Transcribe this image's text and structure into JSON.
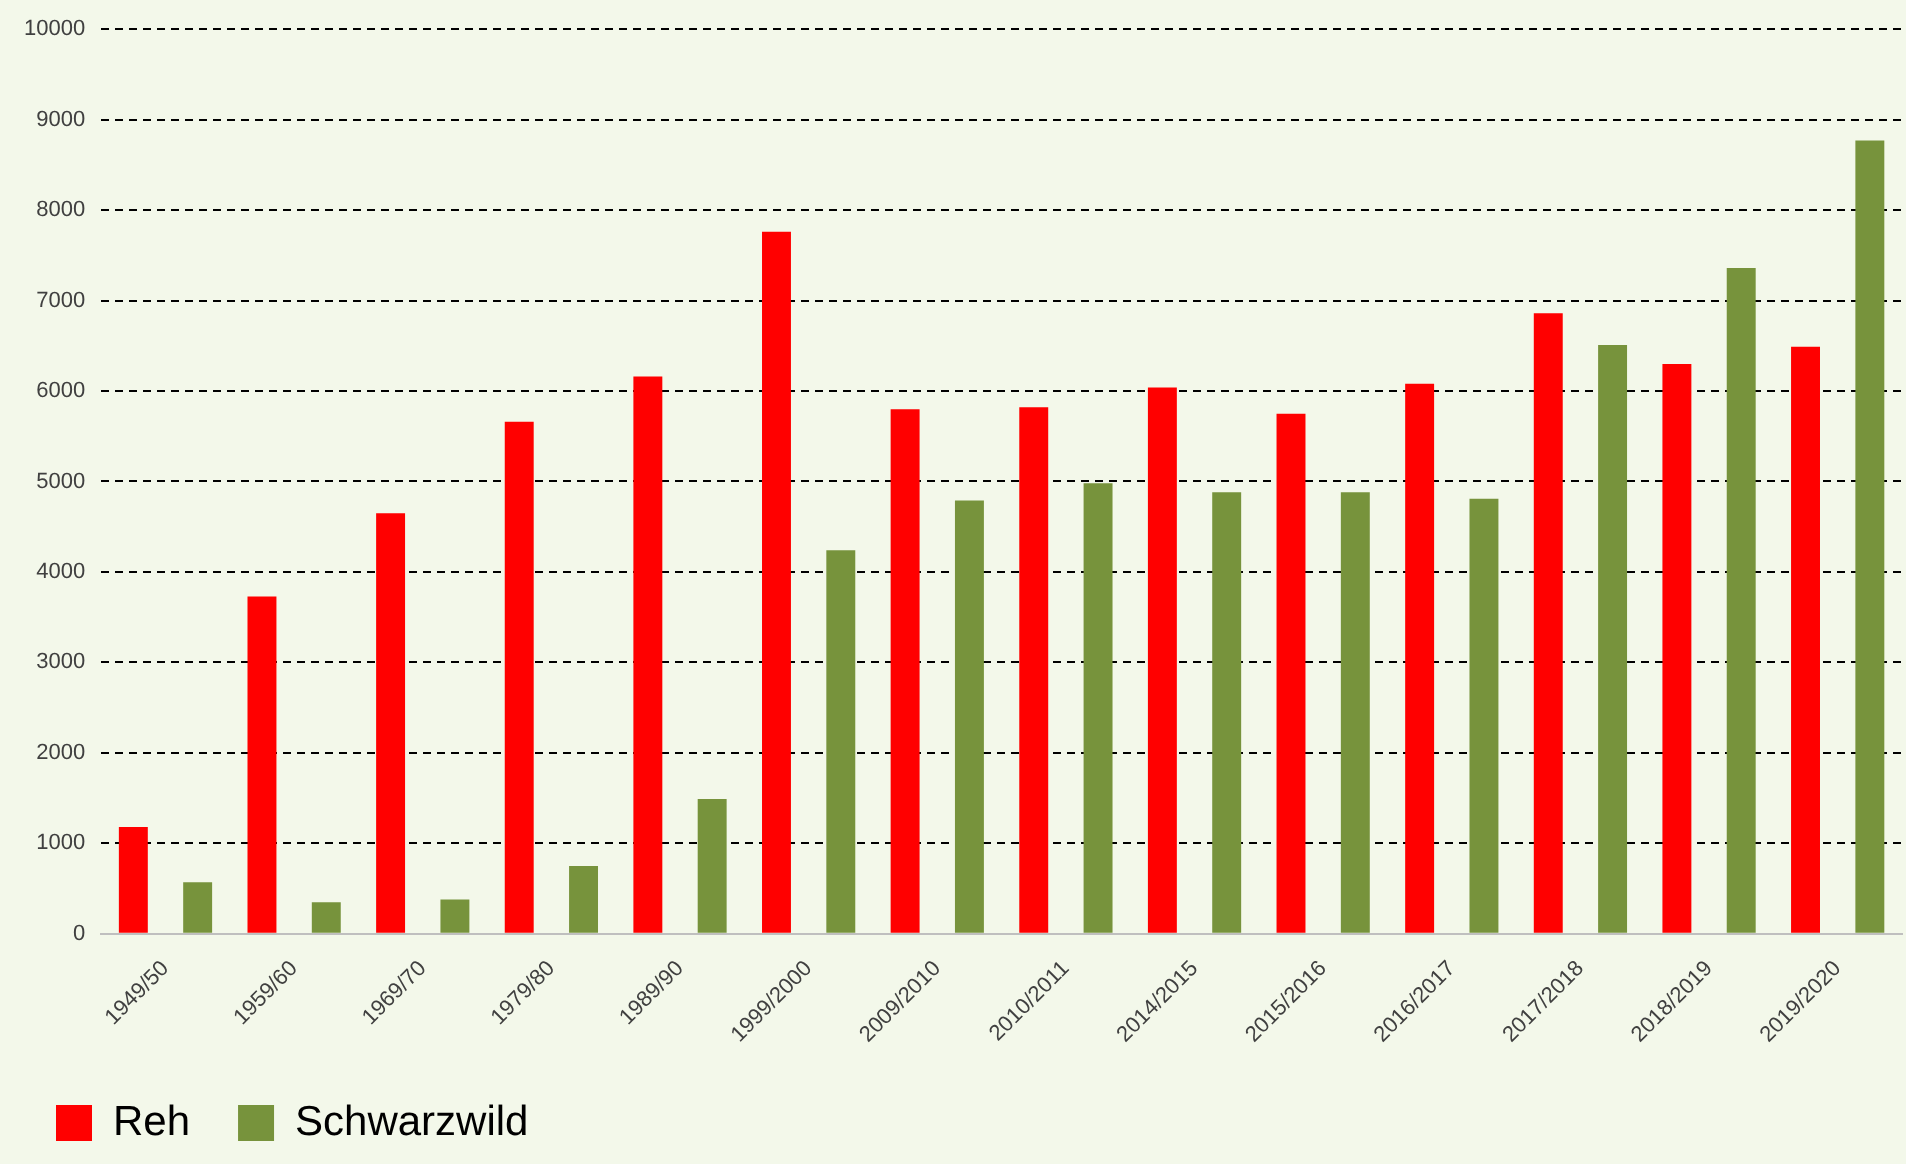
{
  "chart_data": {
    "type": "bar",
    "categories": [
      "1949/50",
      "1959/60",
      "1969/70",
      "1979/80",
      "1989/90",
      "1999/2000",
      "2009/2010",
      "2010/2011",
      "2014/2015",
      "2015/2016",
      "2016/2017",
      "2017/2018",
      "2018/2019",
      "2019/2020"
    ],
    "series": [
      {
        "name": "Reh",
        "color": "#ff0000",
        "values": [
          1180,
          3730,
          4650,
          5660,
          6160,
          7760,
          5800,
          5820,
          6040,
          5750,
          6080,
          6860,
          6300,
          6490
        ]
      },
      {
        "name": "Schwarzwild",
        "color": "#77933c",
        "values": [
          570,
          350,
          380,
          750,
          1490,
          4240,
          4790,
          4980,
          4880,
          4880,
          4810,
          6510,
          7360,
          8770
        ]
      }
    ],
    "ylim": [
      0,
      10000
    ],
    "yticks": [
      0,
      1000,
      2000,
      3000,
      4000,
      5000,
      6000,
      7000,
      8000,
      9000,
      10000
    ],
    "grid": "y",
    "legend": "bottom left"
  }
}
